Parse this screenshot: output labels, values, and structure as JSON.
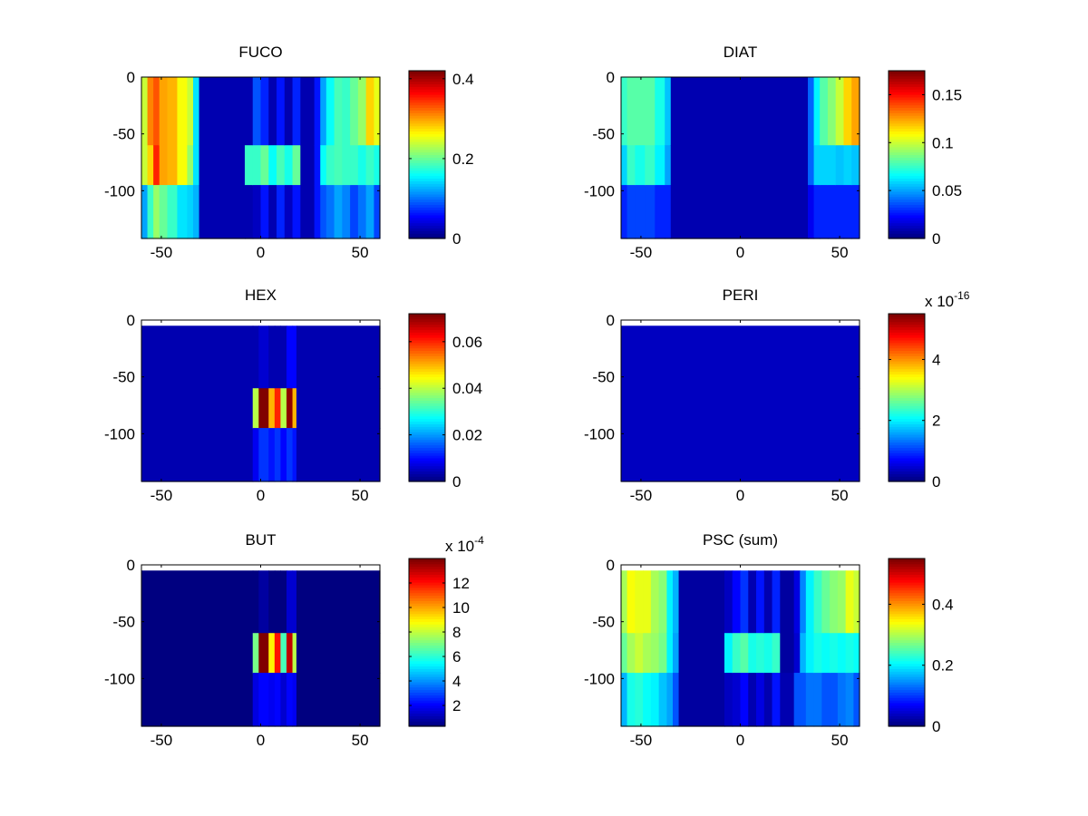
{
  "chart_data": [
    {
      "type": "heatmap",
      "title": "FUCO",
      "xlim": [
        -60,
        60
      ],
      "ylim": [
        -142,
        0
      ],
      "xticks": [
        -50,
        0,
        50
      ],
      "yticks": [
        0,
        -50,
        -100
      ],
      "depth_bands": [
        [
          0,
          -60
        ],
        [
          -60,
          -95
        ],
        [
          -95,
          -142
        ]
      ],
      "cbar": {
        "min": 0,
        "max": 0.42,
        "ticks": [
          0,
          0.2,
          0.4
        ],
        "tick_labels": [
          "0",
          "0.2",
          "0.4"
        ],
        "exponent": ""
      },
      "columns": [
        {
          "x0": -60,
          "x1": -57,
          "v": [
            0.24,
            0.24,
            0.12
          ]
        },
        {
          "x0": -57,
          "x1": -54,
          "v": [
            0.31,
            0.28,
            0.18
          ]
        },
        {
          "x0": -54,
          "x1": -51,
          "v": [
            0.33,
            0.35,
            0.22
          ]
        },
        {
          "x0": -51,
          "x1": -47,
          "v": [
            0.3,
            0.3,
            0.2
          ]
        },
        {
          "x0": -47,
          "x1": -42,
          "v": [
            0.29,
            0.29,
            0.18
          ]
        },
        {
          "x0": -42,
          "x1": -37,
          "v": [
            0.26,
            0.26,
            0.15
          ]
        },
        {
          "x0": -37,
          "x1": -34,
          "v": [
            0.24,
            0.22,
            0.14
          ]
        },
        {
          "x0": -34,
          "x1": -31,
          "v": [
            0.15,
            0.15,
            0.13
          ]
        },
        {
          "x0": -31,
          "x1": -8,
          "v": [
            0.02,
            0.02,
            0.02
          ]
        },
        {
          "x0": -8,
          "x1": -4,
          "v": [
            0.02,
            0.18,
            0.02
          ]
        },
        {
          "x0": -4,
          "x1": 0,
          "v": [
            0.09,
            0.18,
            0.03
          ]
        },
        {
          "x0": 0,
          "x1": 4,
          "v": [
            0.07,
            0.2,
            0.06
          ]
        },
        {
          "x0": 4,
          "x1": 8,
          "v": [
            0.02,
            0.16,
            0.02
          ]
        },
        {
          "x0": 8,
          "x1": 12,
          "v": [
            0.06,
            0.19,
            0.07
          ]
        },
        {
          "x0": 12,
          "x1": 16,
          "v": [
            0.02,
            0.17,
            0.03
          ]
        },
        {
          "x0": 16,
          "x1": 20,
          "v": [
            0.07,
            0.2,
            0.06
          ]
        },
        {
          "x0": 20,
          "x1": 27,
          "v": [
            0.02,
            0.02,
            0.02
          ]
        },
        {
          "x0": 27,
          "x1": 30,
          "v": [
            0.06,
            0.06,
            0.06
          ]
        },
        {
          "x0": 30,
          "x1": 33,
          "v": [
            0.12,
            0.16,
            0.09
          ]
        },
        {
          "x0": 33,
          "x1": 37,
          "v": [
            0.16,
            0.18,
            0.1
          ]
        },
        {
          "x0": 37,
          "x1": 41,
          "v": [
            0.19,
            0.19,
            0.12
          ]
        },
        {
          "x0": 41,
          "x1": 45,
          "v": [
            0.18,
            0.18,
            0.11
          ]
        },
        {
          "x0": 45,
          "x1": 49,
          "v": [
            0.2,
            0.18,
            0.08
          ]
        },
        {
          "x0": 49,
          "x1": 53,
          "v": [
            0.22,
            0.17,
            0.1
          ]
        },
        {
          "x0": 53,
          "x1": 57,
          "v": [
            0.28,
            0.18,
            0.12
          ]
        },
        {
          "x0": 57,
          "x1": 60,
          "v": [
            0.25,
            0.17,
            0.08
          ]
        }
      ]
    },
    {
      "type": "heatmap",
      "title": "DIAT",
      "xlim": [
        -60,
        60
      ],
      "ylim": [
        -142,
        0
      ],
      "xticks": [
        -50,
        0,
        50
      ],
      "yticks": [
        0,
        -50,
        -100
      ],
      "depth_bands": [
        [
          0,
          -60
        ],
        [
          -60,
          -95
        ],
        [
          -95,
          -142
        ]
      ],
      "cbar": {
        "min": 0,
        "max": 0.175,
        "ticks": [
          0,
          0.05,
          0.1,
          0.15
        ],
        "tick_labels": [
          "0",
          "0.05",
          "0.1",
          "0.15"
        ],
        "exponent": ""
      },
      "columns": [
        {
          "x0": -60,
          "x1": -57,
          "v": [
            0.075,
            0.06,
            0.03
          ]
        },
        {
          "x0": -57,
          "x1": -53,
          "v": [
            0.08,
            0.075,
            0.035
          ]
        },
        {
          "x0": -53,
          "x1": -48,
          "v": [
            0.08,
            0.07,
            0.035
          ]
        },
        {
          "x0": -48,
          "x1": -43,
          "v": [
            0.08,
            0.075,
            0.035
          ]
        },
        {
          "x0": -43,
          "x1": -38,
          "v": [
            0.07,
            0.065,
            0.03
          ]
        },
        {
          "x0": -38,
          "x1": -35,
          "v": [
            0.055,
            0.05,
            0.03
          ]
        },
        {
          "x0": -35,
          "x1": 34,
          "v": [
            0.01,
            0.01,
            0.01
          ]
        },
        {
          "x0": 34,
          "x1": 37,
          "v": [
            0.04,
            0.04,
            0.02
          ]
        },
        {
          "x0": 37,
          "x1": 40,
          "v": [
            0.065,
            0.06,
            0.03
          ]
        },
        {
          "x0": 40,
          "x1": 44,
          "v": [
            0.08,
            0.06,
            0.03
          ]
        },
        {
          "x0": 44,
          "x1": 48,
          "v": [
            0.09,
            0.06,
            0.03
          ]
        },
        {
          "x0": 48,
          "x1": 52,
          "v": [
            0.1,
            0.055,
            0.03
          ]
        },
        {
          "x0": 52,
          "x1": 56,
          "v": [
            0.115,
            0.06,
            0.03
          ]
        },
        {
          "x0": 56,
          "x1": 60,
          "v": [
            0.125,
            0.055,
            0.03
          ]
        }
      ]
    },
    {
      "type": "heatmap",
      "title": "HEX",
      "xlim": [
        -60,
        60
      ],
      "ylim": [
        -142,
        0
      ],
      "xticks": [
        -50,
        0,
        50
      ],
      "yticks": [
        0,
        -50,
        -100
      ],
      "depth_bands": [
        [
          -5,
          -60
        ],
        [
          -60,
          -95
        ],
        [
          -95,
          -142
        ]
      ],
      "cbar": {
        "min": 0,
        "max": 0.072,
        "ticks": [
          0,
          0.02,
          0.04,
          0.06
        ],
        "tick_labels": [
          "0",
          "0.02",
          "0.04",
          "0.06"
        ],
        "exponent": ""
      },
      "columns": [
        {
          "x0": -60,
          "x1": -4,
          "v": [
            0.004,
            0.004,
            0.004
          ]
        },
        {
          "x0": -4,
          "x1": -1,
          "v": [
            0.004,
            0.04,
            0.008
          ]
        },
        {
          "x0": -1,
          "x1": 4,
          "v": [
            0.006,
            0.072,
            0.013
          ]
        },
        {
          "x0": 4,
          "x1": 7,
          "v": [
            0.004,
            0.05,
            0.011
          ]
        },
        {
          "x0": 7,
          "x1": 10,
          "v": [
            0.004,
            0.06,
            0.013
          ]
        },
        {
          "x0": 10,
          "x1": 13,
          "v": [
            0.004,
            0.04,
            0.009
          ]
        },
        {
          "x0": 13,
          "x1": 16,
          "v": [
            0.01,
            0.07,
            0.013
          ]
        },
        {
          "x0": 16,
          "x1": 18,
          "v": [
            0.01,
            0.05,
            0.011
          ]
        },
        {
          "x0": 18,
          "x1": 60,
          "v": [
            0.004,
            0.004,
            0.004
          ]
        }
      ]
    },
    {
      "type": "heatmap",
      "title": "PERI",
      "xlim": [
        -60,
        60
      ],
      "ylim": [
        -142,
        0
      ],
      "xticks": [
        -50,
        0,
        50
      ],
      "yticks": [
        0,
        -50,
        -100
      ],
      "depth_bands": [
        [
          -5,
          -60
        ],
        [
          -60,
          -95
        ],
        [
          -95,
          -142
        ]
      ],
      "cbar": {
        "min": 0,
        "max": 5.5,
        "ticks": [
          0,
          2,
          4
        ],
        "tick_labels": [
          "0",
          "2",
          "4"
        ],
        "exponent": "-16"
      },
      "columns": [
        {
          "x0": -60,
          "x1": 60,
          "v": [
            0.4,
            0.4,
            0.4
          ]
        }
      ]
    },
    {
      "type": "heatmap",
      "title": "BUT",
      "xlim": [
        -60,
        60
      ],
      "ylim": [
        -142,
        0
      ],
      "xticks": [
        -50,
        0,
        50
      ],
      "yticks": [
        0,
        -50,
        -100
      ],
      "depth_bands": [
        [
          -5,
          -60
        ],
        [
          -60,
          -95
        ],
        [
          -95,
          -142
        ]
      ],
      "cbar": {
        "min": 0.3,
        "max": 14,
        "ticks": [
          2,
          4,
          6,
          8,
          10,
          12
        ],
        "tick_labels": [
          "2",
          "4",
          "6",
          "8",
          "10",
          "12"
        ],
        "exponent": "-4"
      },
      "columns": [
        {
          "x0": -60,
          "x1": -4,
          "v": [
            0.4,
            0.4,
            0.4
          ]
        },
        {
          "x0": -4,
          "x1": -1,
          "v": [
            0.4,
            7.0,
            1.6
          ]
        },
        {
          "x0": -1,
          "x1": 4,
          "v": [
            0.8,
            14.0,
            2.2
          ]
        },
        {
          "x0": 4,
          "x1": 7,
          "v": [
            0.4,
            9.0,
            2.0
          ]
        },
        {
          "x0": 7,
          "x1": 10,
          "v": [
            0.4,
            12.0,
            2.2
          ]
        },
        {
          "x0": 10,
          "x1": 13,
          "v": [
            0.4,
            6.5,
            1.5
          ]
        },
        {
          "x0": 13,
          "x1": 16,
          "v": [
            1.5,
            13.0,
            2.2
          ]
        },
        {
          "x0": 16,
          "x1": 18,
          "v": [
            1.5,
            8.0,
            1.8
          ]
        },
        {
          "x0": 18,
          "x1": 60,
          "v": [
            0.4,
            0.4,
            0.4
          ]
        }
      ]
    },
    {
      "type": "heatmap",
      "title": "PSC (sum)",
      "xlim": [
        -60,
        60
      ],
      "ylim": [
        -142,
        0
      ],
      "xticks": [
        -50,
        0,
        50
      ],
      "yticks": [
        0,
        -50,
        -100
      ],
      "depth_bands": [
        [
          -5,
          -60
        ],
        [
          -60,
          -95
        ],
        [
          -95,
          -142
        ]
      ],
      "cbar": {
        "min": 0,
        "max": 0.55,
        "ticks": [
          0,
          0.2,
          0.4
        ],
        "tick_labels": [
          "0",
          "0.2",
          "0.4"
        ],
        "exponent": ""
      },
      "columns": [
        {
          "x0": -60,
          "x1": -57,
          "v": [
            0.3,
            0.26,
            0.17
          ]
        },
        {
          "x0": -57,
          "x1": -53,
          "v": [
            0.34,
            0.3,
            0.22
          ]
        },
        {
          "x0": -53,
          "x1": -49,
          "v": [
            0.33,
            0.31,
            0.23
          ]
        },
        {
          "x0": -49,
          "x1": -45,
          "v": [
            0.33,
            0.3,
            0.21
          ]
        },
        {
          "x0": -45,
          "x1": -41,
          "v": [
            0.3,
            0.29,
            0.2
          ]
        },
        {
          "x0": -41,
          "x1": -37,
          "v": [
            0.28,
            0.27,
            0.18
          ]
        },
        {
          "x0": -37,
          "x1": -34,
          "v": [
            0.2,
            0.2,
            0.16
          ]
        },
        {
          "x0": -34,
          "x1": -31,
          "v": [
            0.17,
            0.16,
            0.12
          ]
        },
        {
          "x0": -31,
          "x1": -8,
          "v": [
            0.02,
            0.02,
            0.02
          ]
        },
        {
          "x0": -8,
          "x1": -4,
          "v": [
            0.04,
            0.2,
            0.04
          ]
        },
        {
          "x0": -4,
          "x1": 0,
          "v": [
            0.07,
            0.24,
            0.05
          ]
        },
        {
          "x0": 0,
          "x1": 4,
          "v": [
            0.1,
            0.25,
            0.07
          ]
        },
        {
          "x0": 4,
          "x1": 8,
          "v": [
            0.03,
            0.22,
            0.03
          ]
        },
        {
          "x0": 8,
          "x1": 12,
          "v": [
            0.08,
            0.23,
            0.06
          ]
        },
        {
          "x0": 12,
          "x1": 16,
          "v": [
            0.03,
            0.22,
            0.03
          ]
        },
        {
          "x0": 16,
          "x1": 20,
          "v": [
            0.09,
            0.24,
            0.08
          ]
        },
        {
          "x0": 20,
          "x1": 27,
          "v": [
            0.02,
            0.02,
            0.03
          ]
        },
        {
          "x0": 27,
          "x1": 30,
          "v": [
            0.06,
            0.05,
            0.12
          ]
        },
        {
          "x0": 30,
          "x1": 33,
          "v": [
            0.14,
            0.17,
            0.12
          ]
        },
        {
          "x0": 33,
          "x1": 37,
          "v": [
            0.2,
            0.2,
            0.13
          ]
        },
        {
          "x0": 37,
          "x1": 41,
          "v": [
            0.24,
            0.22,
            0.13
          ]
        },
        {
          "x0": 41,
          "x1": 45,
          "v": [
            0.26,
            0.21,
            0.12
          ]
        },
        {
          "x0": 45,
          "x1": 49,
          "v": [
            0.28,
            0.22,
            0.12
          ]
        },
        {
          "x0": 49,
          "x1": 53,
          "v": [
            0.29,
            0.21,
            0.13
          ]
        },
        {
          "x0": 53,
          "x1": 57,
          "v": [
            0.33,
            0.22,
            0.14
          ]
        },
        {
          "x0": 57,
          "x1": 60,
          "v": [
            0.31,
            0.21,
            0.12
          ]
        }
      ]
    }
  ]
}
